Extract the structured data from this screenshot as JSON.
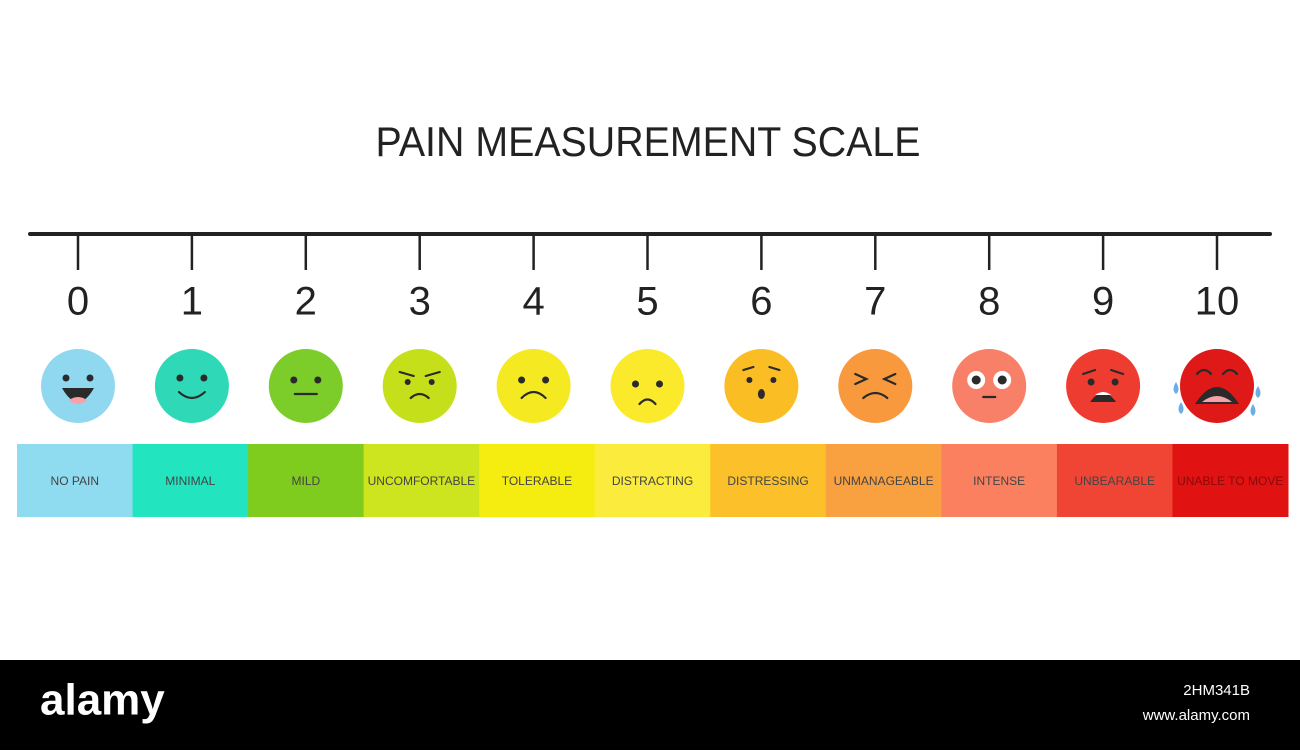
{
  "header": {
    "title": "PAIN MEASUREMENT SCALE"
  },
  "levels": [
    {
      "number": 0,
      "label": "NO PAIN",
      "face_color": "#8fd8f0",
      "bar_color": "#8fdcf0"
    },
    {
      "number": 1,
      "label": "MINIMAL",
      "face_color": "#2fd9b8",
      "bar_color": "#22e5c0"
    },
    {
      "number": 2,
      "label": "MILD",
      "face_color": "#7ccc2a",
      "bar_color": "#7fcc1f"
    },
    {
      "number": 3,
      "label": "UNCOMFORTABLE",
      "face_color": "#c5e01a",
      "bar_color": "#cde51e"
    },
    {
      "number": 4,
      "label": "TOLERABLE",
      "face_color": "#f5ea22",
      "bar_color": "#f5ec10"
    },
    {
      "number": 5,
      "label": "DISTRACTING",
      "face_color": "#fbea2c",
      "bar_color": "#fbeb3c"
    },
    {
      "number": 6,
      "label": "DISTRESSING",
      "face_color": "#fbbd24",
      "bar_color": "#fbc02a"
    },
    {
      "number": 7,
      "label": "UNMANAGEABLE",
      "face_color": "#f9993e",
      "bar_color": "#f9a040"
    },
    {
      "number": 8,
      "label": "INTENSE",
      "face_color": "#f98068",
      "bar_color": "#fb8060"
    },
    {
      "number": 9,
      "label": "UNBEARABLE",
      "face_color": "#ee3d30",
      "bar_color": "#f04535"
    },
    {
      "number": 10,
      "label": "UNABLE TO MOVE",
      "face_color": "#df1818",
      "bar_color": "#e01212"
    }
  ],
  "footer": {
    "logo": "alamy",
    "image_id": "2HM341B",
    "site": "www.alamy.com"
  }
}
